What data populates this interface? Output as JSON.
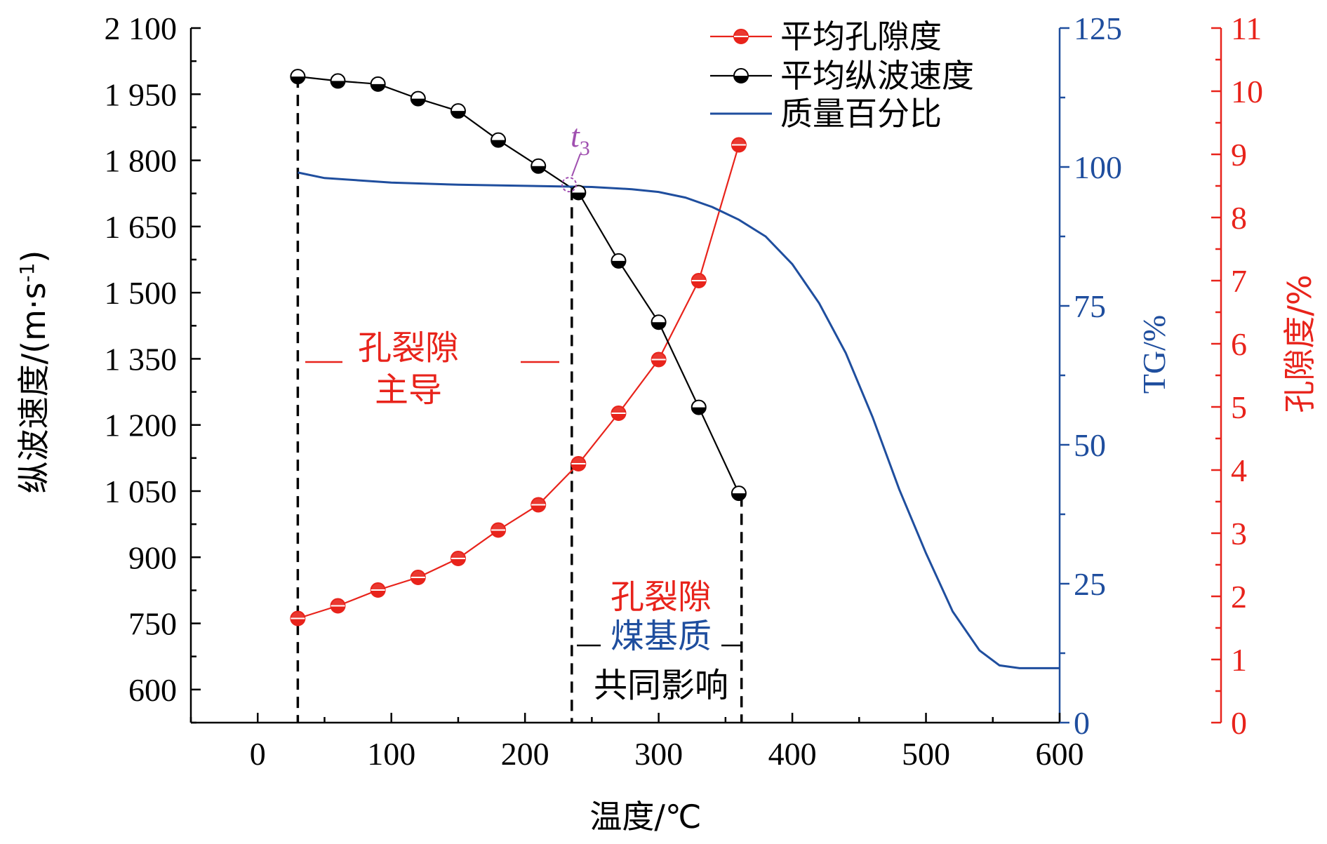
{
  "chart_data": {
    "type": "line",
    "xlabel": "温度/℃",
    "x_ticks": [
      "0",
      "100",
      "200",
      "300",
      "400",
      "500",
      "600"
    ],
    "xlim": [
      -50,
      600
    ],
    "y_left": {
      "label_main": "纵波速度/(m·s",
      "label_sup": "-1",
      "label_close": ")",
      "ylim": [
        525,
        2100
      ],
      "ticks": [
        "600",
        "750",
        "900",
        "1 050",
        "1 200",
        "1 350",
        "1 500",
        "1 650",
        "1 800",
        "1 950",
        "2 100"
      ],
      "color": "#000000"
    },
    "y_right_tg": {
      "label": "TG/%",
      "ylim": [
        0,
        125
      ],
      "ticks": [
        "0",
        "25",
        "50",
        "75",
        "100",
        "125"
      ],
      "color": "#1f4e9e"
    },
    "y_right_porosity": {
      "label": "孔隙度/%",
      "ylim": [
        0,
        11
      ],
      "ticks": [
        "0",
        "1",
        "2",
        "3",
        "4",
        "5",
        "6",
        "7",
        "8",
        "9",
        "10",
        "11"
      ],
      "color": "#e8231b"
    },
    "series": [
      {
        "name": "平均孔隙度",
        "axis": "porosity",
        "color": "#e8231b",
        "x": [
          30,
          60,
          90,
          120,
          150,
          180,
          210,
          240,
          270,
          300,
          330,
          360
        ],
        "y": [
          1.65,
          1.85,
          2.1,
          2.3,
          2.6,
          3.05,
          3.45,
          4.1,
          4.9,
          5.75,
          7.0,
          9.15
        ]
      },
      {
        "name": "平均纵波速度",
        "axis": "velocity",
        "color": "#000000",
        "x": [
          30,
          60,
          90,
          120,
          150,
          180,
          210,
          240,
          270,
          300,
          330,
          360
        ],
        "y": [
          1990,
          1980,
          1973,
          1940,
          1912,
          1846,
          1787,
          1727,
          1572,
          1433,
          1240,
          1045
        ]
      },
      {
        "name": "质量百分比",
        "axis": "tg",
        "color": "#1f4e9e",
        "x": [
          30,
          50,
          100,
          150,
          200,
          250,
          280,
          300,
          320,
          340,
          360,
          380,
          400,
          420,
          440,
          460,
          480,
          500,
          520,
          540,
          555,
          570,
          600
        ],
        "y": [
          99,
          98,
          97.2,
          96.8,
          96.6,
          96.4,
          96.0,
          95.5,
          94.5,
          92.8,
          90.5,
          87.5,
          82.5,
          75.5,
          66.5,
          55,
          42,
          30.5,
          20,
          13,
          10.3,
          9.8,
          9.8
        ]
      }
    ],
    "dashed_lines": [
      {
        "x": 30,
        "y_velocity_top": 1990
      },
      {
        "x": 235,
        "y_velocity_top": 1735
      },
      {
        "x": 362,
        "y_velocity_top": 1040
      }
    ],
    "highlight_point": {
      "label": "t",
      "sub": "3",
      "x": 233,
      "y_velocity": 1745,
      "color": "#a050b0"
    },
    "annotations": {
      "region1_line1": "孔裂隙",
      "region1_line2": "主导",
      "region2_line1": "孔裂隙",
      "region2_line2": "煤基质",
      "region2_line3": "共同影响"
    },
    "legend": {
      "position": "top-right"
    }
  }
}
